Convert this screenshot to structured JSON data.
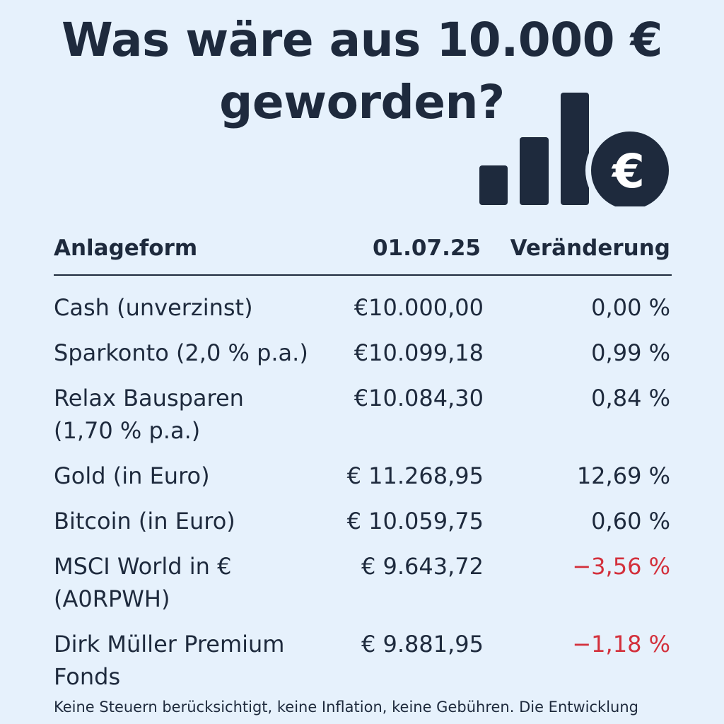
{
  "title": {
    "line1": "Was wäre aus 10.000 €",
    "line2": "geworden?"
  },
  "logo": {
    "icon": "bar-chart-euro-icon",
    "symbol": "€",
    "color": "#1e2a3d"
  },
  "table": {
    "headers": {
      "name": "Anlageform",
      "value": "01.07.25",
      "change": "Veränderung"
    },
    "rows": [
      {
        "name": [
          "Cash (unverzinst)"
        ],
        "value": "€10.000,00",
        "change": "0,00 %",
        "negative": false
      },
      {
        "name": [
          "Sparkonto (2,0 % p.a.)"
        ],
        "value": "€10.099,18",
        "change": "0,99 %",
        "negative": false
      },
      {
        "name": [
          "Relax Bausparen",
          "(1,70 % p.a.)"
        ],
        "value": "€10.084,30",
        "change": "0,84 %",
        "negative": false
      },
      {
        "name": [
          "Gold (in Euro)"
        ],
        "value": "€ 11.268,95",
        "change": "12,69 %",
        "negative": false
      },
      {
        "name": [
          "Bitcoin (in Euro)"
        ],
        "value": "€ 10.059,75",
        "change": "0,60 %",
        "negative": false
      },
      {
        "name": [
          "MSCI World in €",
          "(A0RPWH)"
        ],
        "value": "€ 9.643,72",
        "change": "−3,56 %",
        "negative": true
      },
      {
        "name": [
          "Dirk Müller Premium",
          "Fonds"
        ],
        "value": "€ 9.881,95",
        "change": "−1,18 %",
        "negative": true
      }
    ]
  },
  "colors": {
    "text": "#1e2a3d",
    "negative": "#d3303c",
    "background": "#e6f1fc"
  },
  "footer": "Keine Steuern berücksichtigt, keine Inflation, keine Gebühren. Die Entwicklung"
}
